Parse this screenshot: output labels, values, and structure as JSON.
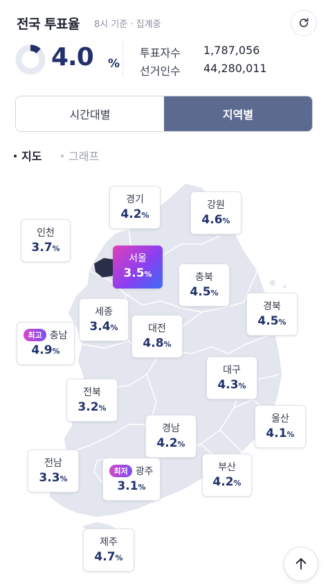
{
  "header": {
    "title": "전국 투표율",
    "subtitle": "8시 기준 · 집계중"
  },
  "turnout": {
    "value": "4.0",
    "unit": "%",
    "progress_fraction": 0.04,
    "voters_label": "투표자수",
    "voters_value": "1,787,056",
    "electorate_label": "선거인수",
    "electorate_value": "44,280,011"
  },
  "toggle": {
    "time_label": "시간대별",
    "region_label": "지역별",
    "active": "region"
  },
  "view_tabs": {
    "map_label": "지도",
    "graph_label": "그래프",
    "active": "map"
  },
  "badges": {
    "highest": "최고",
    "lowest": "최저"
  },
  "regions": {
    "gyeonggi": {
      "name": "경기",
      "value": "4.2"
    },
    "gangwon": {
      "name": "강원",
      "value": "4.6"
    },
    "incheon": {
      "name": "인천",
      "value": "3.7"
    },
    "seoul": {
      "name": "서울",
      "value": "3.5"
    },
    "chungbuk": {
      "name": "충북",
      "value": "4.5"
    },
    "gyeongbuk": {
      "name": "경북",
      "value": "4.5"
    },
    "sejong": {
      "name": "세종",
      "value": "3.4"
    },
    "chungnam": {
      "name": "충남",
      "value": "4.9"
    },
    "daejeon": {
      "name": "대전",
      "value": "4.8"
    },
    "daegu": {
      "name": "대구",
      "value": "4.3"
    },
    "jeonbuk": {
      "name": "전북",
      "value": "3.2"
    },
    "ulsan": {
      "name": "울산",
      "value": "4.1"
    },
    "gyeongnam": {
      "name": "경남",
      "value": "4.2"
    },
    "jeonnam": {
      "name": "전남",
      "value": "3.3"
    },
    "gwangju": {
      "name": "광주",
      "value": "3.1"
    },
    "busan": {
      "name": "부산",
      "value": "4.2"
    },
    "jeju": {
      "name": "제주",
      "value": "4.7"
    }
  },
  "colors": {
    "accent": "#22316b",
    "toggle_active": "#5d6a8f",
    "map_fill": "#e3e6ee",
    "map_line": "#ffffff",
    "highlight_from": "#e040b8",
    "highlight_to": "#3d6cf5"
  },
  "icons": {
    "refresh": "refresh-icon",
    "scroll_top": "arrow-up-icon"
  }
}
